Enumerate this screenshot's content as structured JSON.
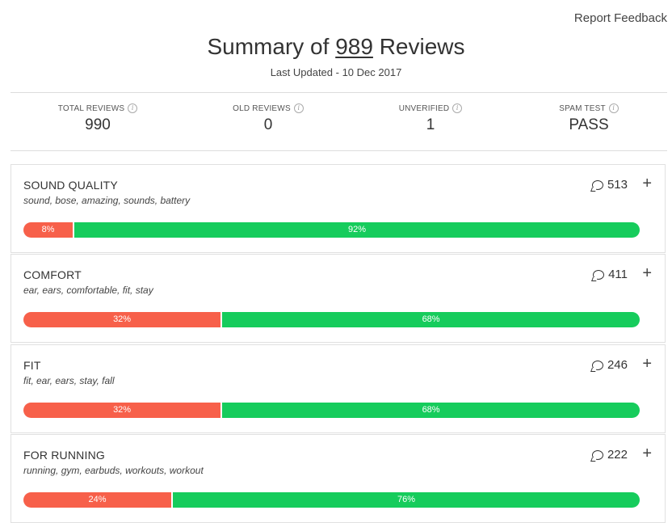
{
  "header": {
    "report_feedback": "Report Feedback",
    "title_prefix": "Summary of",
    "title_count": "989",
    "title_suffix": "Reviews",
    "last_updated": "Last Updated - 10 Dec 2017"
  },
  "stats": [
    {
      "label": "TOTAL REVIEWS",
      "value": "990"
    },
    {
      "label": "OLD REVIEWS",
      "value": "0"
    },
    {
      "label": "UNVERIFIED",
      "value": "1"
    },
    {
      "label": "SPAM TEST",
      "value": "PASS"
    }
  ],
  "colors": {
    "negative": "#f7604a",
    "positive": "#16cc5c"
  },
  "topics": [
    {
      "name": "SOUND QUALITY",
      "keywords": "sound, bose, amazing, sounds, battery",
      "mentions": "513",
      "negative": 8,
      "positive": 92,
      "negative_label": "8%",
      "positive_label": "92%"
    },
    {
      "name": "COMFORT",
      "keywords": "ear, ears, comfortable, fit, stay",
      "mentions": "411",
      "negative": 32,
      "positive": 68,
      "negative_label": "32%",
      "positive_label": "68%"
    },
    {
      "name": "FIT",
      "keywords": "fit, ear, ears, stay, fall",
      "mentions": "246",
      "negative": 32,
      "positive": 68,
      "negative_label": "32%",
      "positive_label": "68%"
    },
    {
      "name": "FOR RUNNING",
      "keywords": "running, gym, earbuds, workouts, workout",
      "mentions": "222",
      "negative": 24,
      "positive": 76,
      "negative_label": "24%",
      "positive_label": "76%"
    }
  ]
}
